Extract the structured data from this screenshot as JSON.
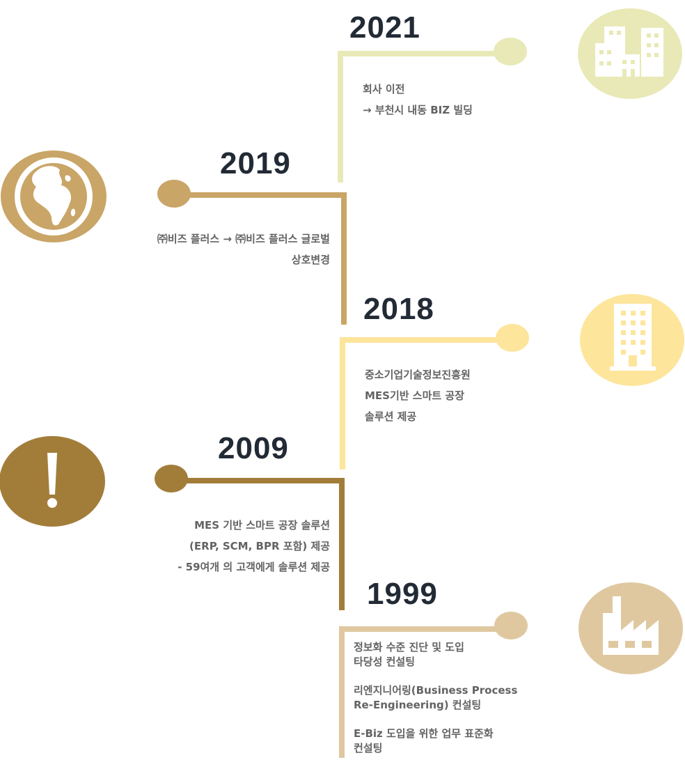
{
  "timeline": [
    {
      "year": "2021",
      "color": "#e8e9b6",
      "icon": "office-buildings-icon",
      "lines": [
        "회사 이전",
        "→ 부천시 내동 BIZ 빌딩"
      ]
    },
    {
      "year": "2019",
      "color": "#c9a567",
      "icon": "globe-icon",
      "lines": [
        "㈜비즈 플러스 → ㈜비즈 플러스 글로벌",
        "상호변경"
      ]
    },
    {
      "year": "2018",
      "color": "#fde59c",
      "icon": "office-tower-icon",
      "lines": [
        "중소기업기술정보진흥원",
        "MES기반 스마트 공장",
        "솔루션 제공"
      ]
    },
    {
      "year": "2009",
      "color": "#a27d3a",
      "icon": "exclamation-icon",
      "lines": [
        "MES 기반 스마트 공장 솔루션",
        "(ERP, SCM, BPR 포함) 제공",
        "- 59여개 의 고객에게 솔루션 제공"
      ]
    },
    {
      "year": "1999",
      "color": "#dfc8a0",
      "icon": "factory-icon",
      "lines": [
        "정보화 수준 진단 및 도입",
        "타당성 컨설팅",
        "리엔지니어링(Business Process",
        "Re-Engineering) 컨설팅",
        "E-Biz 도입을 위한 업무 표준화",
        "컨설팅"
      ]
    }
  ]
}
